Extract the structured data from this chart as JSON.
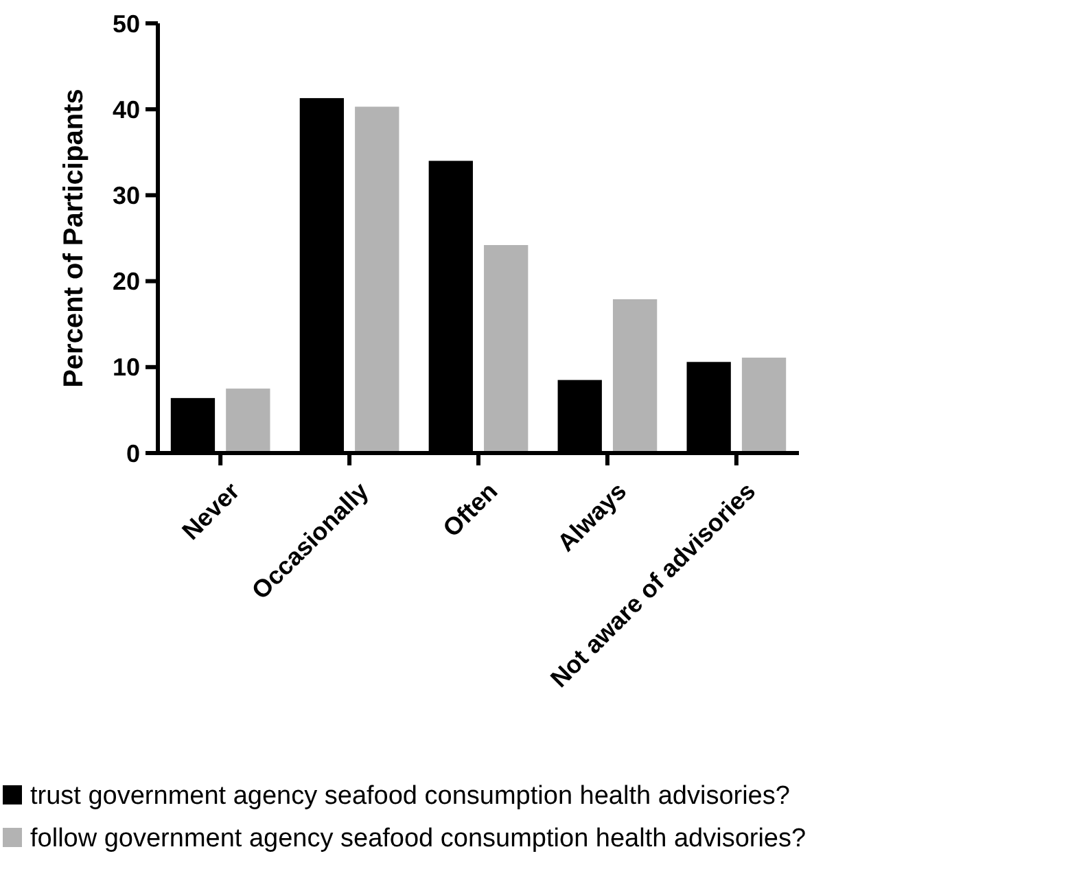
{
  "chart_data": {
    "type": "bar",
    "ylabel": "Percent of Participants",
    "categories": [
      "Never",
      "Occasionally",
      "Often",
      "Always",
      "Not aware of advisories"
    ],
    "series": [
      {
        "name": "trust government agency seafood consumption health advisories?",
        "color": "#000000",
        "values": [
          6.4,
          41.3,
          34.0,
          8.5,
          10.6
        ]
      },
      {
        "name": "follow government agency seafood consumption health advisories?",
        "color": "#b3b3b3",
        "values": [
          7.5,
          40.3,
          24.2,
          17.9,
          11.1
        ]
      }
    ],
    "ylim": [
      0,
      50
    ],
    "yticks": [
      0,
      10,
      20,
      30,
      40,
      50
    ],
    "grid": false,
    "legend": "bottom"
  }
}
